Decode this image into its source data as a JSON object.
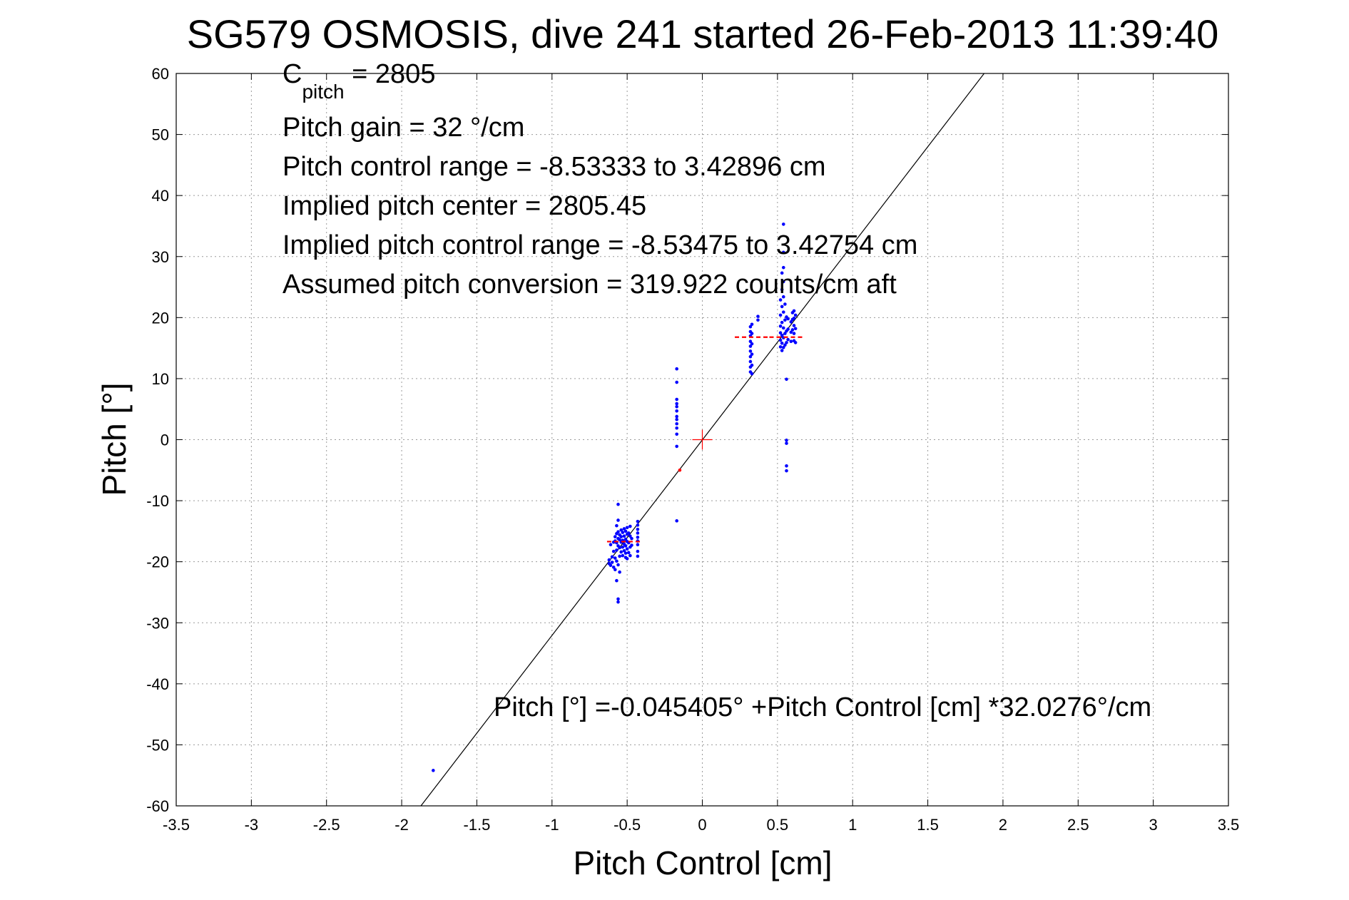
{
  "chart_data": {
    "type": "scatter",
    "title": "SG579 OSMOSIS, dive 241 started 26-Feb-2013 11:39:40",
    "xlabel": "Pitch Control [cm]",
    "ylabel": "Pitch [°]",
    "xlim": [
      -3.5,
      3.5
    ],
    "ylim": [
      -60,
      60
    ],
    "xticks": [
      -3.5,
      -3,
      -2.5,
      -2,
      -1.5,
      -1,
      -0.5,
      0,
      0.5,
      1,
      1.5,
      2,
      2.5,
      3,
      3.5
    ],
    "xtick_labels": [
      "-3.5",
      "-3",
      "-2.5",
      "-2",
      "-1.5",
      "-1",
      "-0.5",
      "0",
      "0.5",
      "1",
      "1.5",
      "2",
      "2.5",
      "3",
      "3.5"
    ],
    "yticks": [
      -60,
      -50,
      -40,
      -30,
      -20,
      -10,
      0,
      10,
      20,
      30,
      40,
      50,
      60
    ],
    "ytick_labels": [
      "-60",
      "-50",
      "-40",
      "-30",
      "-20",
      "-10",
      "0",
      "10",
      "20",
      "30",
      "40",
      "50",
      "60"
    ],
    "grid": true,
    "legend": "none",
    "annotations": {
      "c_pitch_label": "C",
      "c_pitch_subscript": "pitch",
      "c_pitch_value": " = 2805",
      "pitch_gain": "Pitch gain = 32 °/cm",
      "pitch_control_range": "Pitch control range = -8.53333 to 3.42896 cm",
      "implied_pitch_center": "Implied pitch center = 2805.45",
      "implied_pitch_control_range": "Implied pitch control range = -8.53475 to 3.42754 cm",
      "assumed_pitch_conversion": "Assumed pitch conversion = 319.922 counts/cm aft",
      "fit_equation": "Pitch [°] =-0.045405° +Pitch Control [cm] *32.0276°/cm"
    },
    "fit_line": {
      "intercept": -0.045405,
      "slope": 32.0276
    },
    "origin_marker": {
      "x": 0,
      "y": 0
    },
    "medians": [
      {
        "x": -0.52,
        "y": -16.7
      },
      {
        "x": 0.33,
        "y": 16.8
      },
      {
        "x": 0.56,
        "y": 16.8
      }
    ],
    "series": [
      {
        "color": "#0000ff",
        "points": [
          [
            -1.79,
            -54.2
          ],
          [
            -0.62,
            -19.7
          ],
          [
            -0.62,
            -20.3
          ],
          [
            -0.61,
            -17.2
          ],
          [
            -0.61,
            -20.6
          ],
          [
            -0.6,
            -19.2
          ],
          [
            -0.6,
            -20.1
          ],
          [
            -0.59,
            -16.8
          ],
          [
            -0.59,
            -18.3
          ],
          [
            -0.59,
            -20.9
          ],
          [
            -0.58,
            -15.9
          ],
          [
            -0.58,
            -16.6
          ],
          [
            -0.58,
            -19.4
          ],
          [
            -0.58,
            -21.3
          ],
          [
            -0.57,
            -14.1
          ],
          [
            -0.57,
            -15.4
          ],
          [
            -0.57,
            -16.9
          ],
          [
            -0.57,
            -18.1
          ],
          [
            -0.57,
            -19.9
          ],
          [
            -0.57,
            -23.1
          ],
          [
            -0.56,
            -10.6
          ],
          [
            -0.56,
            -13.2
          ],
          [
            -0.56,
            -15.1
          ],
          [
            -0.56,
            -16.2
          ],
          [
            -0.56,
            -17.4
          ],
          [
            -0.56,
            -20.5
          ],
          [
            -0.56,
            -26.1
          ],
          [
            -0.56,
            -26.6
          ],
          [
            -0.55,
            -15.6
          ],
          [
            -0.55,
            -16.4
          ],
          [
            -0.55,
            -17.7
          ],
          [
            -0.55,
            -19.1
          ],
          [
            -0.55,
            -21.7
          ],
          [
            -0.54,
            -14.8
          ],
          [
            -0.54,
            -15.9
          ],
          [
            -0.54,
            -16.8
          ],
          [
            -0.54,
            -18.4
          ],
          [
            -0.53,
            -15.2
          ],
          [
            -0.53,
            -16.5
          ],
          [
            -0.53,
            -17.6
          ],
          [
            -0.53,
            -19.0
          ],
          [
            -0.52,
            -14.6
          ],
          [
            -0.52,
            -15.8
          ],
          [
            -0.52,
            -17.1
          ],
          [
            -0.52,
            -18.2
          ],
          [
            -0.51,
            -15.0
          ],
          [
            -0.51,
            -16.3
          ],
          [
            -0.51,
            -17.4
          ],
          [
            -0.51,
            -18.6
          ],
          [
            -0.51,
            -19.3
          ],
          [
            -0.5,
            -14.4
          ],
          [
            -0.5,
            -15.5
          ],
          [
            -0.5,
            -16.7
          ],
          [
            -0.5,
            -17.9
          ],
          [
            -0.5,
            -19.5
          ],
          [
            -0.49,
            -15.3
          ],
          [
            -0.49,
            -16.9
          ],
          [
            -0.49,
            -18.5
          ],
          [
            -0.48,
            -14.2
          ],
          [
            -0.48,
            -15.8
          ],
          [
            -0.48,
            -17.6
          ],
          [
            -0.48,
            -19.0
          ],
          [
            -0.47,
            -16.2
          ],
          [
            -0.47,
            -17.3
          ],
          [
            -0.43,
            -13.4
          ],
          [
            -0.43,
            -14.0
          ],
          [
            -0.43,
            -14.7
          ],
          [
            -0.43,
            -15.3
          ],
          [
            -0.43,
            -16.0
          ],
          [
            -0.43,
            -16.6
          ],
          [
            -0.43,
            -17.2
          ],
          [
            -0.43,
            -18.3
          ],
          [
            -0.43,
            -19.1
          ],
          [
            -0.17,
            11.6
          ],
          [
            -0.17,
            9.4
          ],
          [
            -0.17,
            6.6
          ],
          [
            -0.17,
            5.9
          ],
          [
            -0.17,
            5.4
          ],
          [
            -0.17,
            4.7
          ],
          [
            -0.17,
            3.8
          ],
          [
            -0.17,
            3.3
          ],
          [
            -0.17,
            2.6
          ],
          [
            -0.17,
            1.9
          ],
          [
            -0.17,
            0.9
          ],
          [
            -0.17,
            -1.1
          ],
          [
            -0.17,
            -13.3
          ],
          [
            0.32,
            11.1
          ],
          [
            0.32,
            11.9
          ],
          [
            0.32,
            12.8
          ],
          [
            0.32,
            13.6
          ],
          [
            0.32,
            14.5
          ],
          [
            0.32,
            15.3
          ],
          [
            0.32,
            16.1
          ],
          [
            0.32,
            17.0
          ],
          [
            0.32,
            17.7
          ],
          [
            0.32,
            18.5
          ],
          [
            0.33,
            10.8
          ],
          [
            0.33,
            12.2
          ],
          [
            0.33,
            14.0
          ],
          [
            0.33,
            15.7
          ],
          [
            0.33,
            17.4
          ],
          [
            0.33,
            18.9
          ],
          [
            0.37,
            19.6
          ],
          [
            0.37,
            20.2
          ],
          [
            0.52,
            15.2
          ],
          [
            0.52,
            16.3
          ],
          [
            0.52,
            17.5
          ],
          [
            0.52,
            18.6
          ],
          [
            0.52,
            20.4
          ],
          [
            0.52,
            22.9
          ],
          [
            0.53,
            14.6
          ],
          [
            0.53,
            15.8
          ],
          [
            0.53,
            17.1
          ],
          [
            0.53,
            19.2
          ],
          [
            0.53,
            21.8
          ],
          [
            0.53,
            24.6
          ],
          [
            0.53,
            27.3
          ],
          [
            0.54,
            15.1
          ],
          [
            0.54,
            16.7
          ],
          [
            0.54,
            18.3
          ],
          [
            0.54,
            20.9
          ],
          [
            0.54,
            23.4
          ],
          [
            0.54,
            25.9
          ],
          [
            0.54,
            28.2
          ],
          [
            0.54,
            30.7
          ],
          [
            0.54,
            35.3
          ],
          [
            0.55,
            15.5
          ],
          [
            0.55,
            17.4
          ],
          [
            0.55,
            19.6
          ],
          [
            0.55,
            22.2
          ],
          [
            0.56,
            9.9
          ],
          [
            0.56,
            15.9
          ],
          [
            0.56,
            17.8
          ],
          [
            0.56,
            20.1
          ],
          [
            0.56,
            -0.1
          ],
          [
            0.56,
            -0.6
          ],
          [
            0.56,
            -4.3
          ],
          [
            0.56,
            -5.1
          ],
          [
            0.57,
            16.4
          ],
          [
            0.57,
            18.1
          ],
          [
            0.57,
            19.8
          ],
          [
            0.59,
            16.1
          ],
          [
            0.59,
            17.6
          ],
          [
            0.59,
            19.3
          ],
          [
            0.6,
            18.0
          ],
          [
            0.6,
            19.7
          ],
          [
            0.6,
            20.8
          ],
          [
            0.61,
            16.2
          ],
          [
            0.61,
            17.4
          ],
          [
            0.61,
            18.7
          ],
          [
            0.61,
            19.9
          ],
          [
            0.61,
            21.1
          ],
          [
            0.62,
            15.9
          ],
          [
            0.62,
            18.2
          ],
          [
            0.62,
            20.4
          ]
        ]
      },
      {
        "color": "#ff0000",
        "points": [
          [
            -0.15,
            -5.0
          ]
        ]
      }
    ]
  }
}
